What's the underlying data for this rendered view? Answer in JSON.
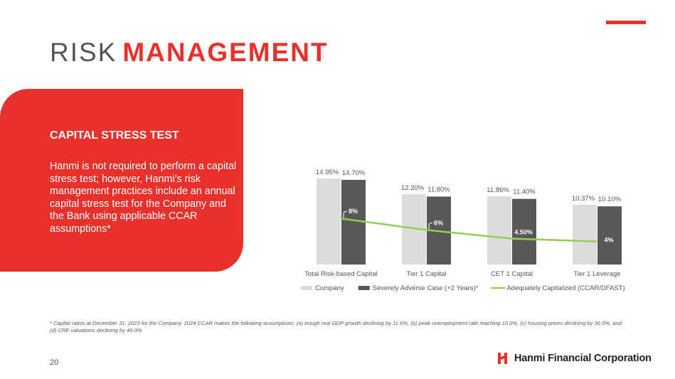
{
  "title": {
    "light": "RISK",
    "bold": "MANAGEMENT"
  },
  "panel": {
    "heading": "CAPITAL STRESS TEST",
    "body": "Hanmi is not required to perform a capital stress test; however, Hanmi’s risk management practices include an annual capital stress test for the Company and the Bank using applicable CCAR assumptions*"
  },
  "chart_data": {
    "type": "bar",
    "categories": [
      "Total Risk-based Capital",
      "Tier 1 Capital",
      "CET 1 Capital",
      "Tier 1 Leverage"
    ],
    "series": [
      {
        "name": "Company",
        "kind": "bar",
        "color": "#dcdcdc",
        "values": [
          14.95,
          12.2,
          11.86,
          10.37
        ],
        "labels": [
          "14.95%",
          "12.20%",
          "11.86%",
          "10.37%"
        ]
      },
      {
        "name": "Severely Adverse Case (+2 Years)*",
        "kind": "bar",
        "color": "#58585a",
        "values": [
          14.7,
          11.8,
          11.4,
          10.1
        ],
        "labels": [
          "14.70%",
          "11.80%",
          "11.40%",
          "10.10%"
        ]
      },
      {
        "name": "Adequately Capitalized (CCAR/DFAST)",
        "kind": "line",
        "color": "#92d050",
        "values": [
          8,
          6,
          4.5,
          4
        ],
        "labels": [
          "8%",
          "6%",
          "4.50%",
          "4%"
        ]
      }
    ],
    "ylim": [
      0,
      16
    ],
    "title": "",
    "xlabel": "",
    "ylabel": "",
    "legend": "bottom",
    "grid": false
  },
  "footnote": "* Capital ratios at December 31, 2023 for the Company. 2024 CCAR makes the following assumptions: (a) trough real GDP growth declining by 11.6%, (b) peak unemployment rate reaching 10.0%, (c) housing prices declining by 36.0%, and (d) CRE valuations declining by 40.0%",
  "page_number": "20",
  "logo": {
    "name": "Hanmi Financial Corporation",
    "color": "#e8312a"
  },
  "colors": {
    "accent": "#e8312a",
    "white": "#ffffff"
  }
}
